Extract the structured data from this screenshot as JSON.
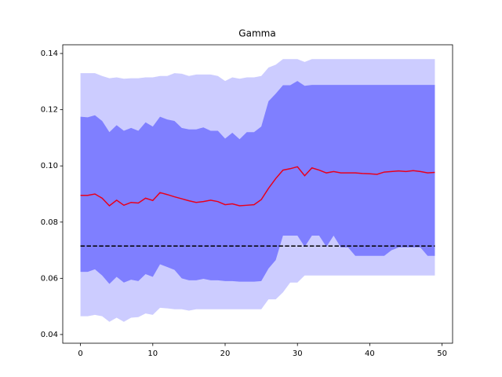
{
  "chart_data": {
    "type": "line",
    "title": "Gamma",
    "x": [
      0,
      1,
      2,
      3,
      4,
      5,
      6,
      7,
      8,
      9,
      10,
      11,
      12,
      13,
      14,
      15,
      16,
      17,
      18,
      19,
      20,
      21,
      22,
      23,
      24,
      25,
      26,
      27,
      28,
      29,
      30,
      31,
      32,
      33,
      34,
      35,
      36,
      37,
      38,
      39,
      40,
      41,
      42,
      43,
      44,
      45,
      46,
      47,
      48,
      49
    ],
    "series": [
      {
        "color": "#e8001c",
        "values": [
          0.0895,
          0.0895,
          0.09,
          0.0885,
          0.0858,
          0.0878,
          0.086,
          0.087,
          0.0868,
          0.0885,
          0.0877,
          0.0905,
          0.0898,
          0.089,
          0.0883,
          0.0876,
          0.087,
          0.0873,
          0.0878,
          0.0873,
          0.0862,
          0.0865,
          0.0858,
          0.086,
          0.0862,
          0.088,
          0.092,
          0.0955,
          0.0985,
          0.099,
          0.0997,
          0.0965,
          0.0993,
          0.0985,
          0.0975,
          0.098,
          0.0975,
          0.0975,
          0.0975,
          0.0973,
          0.0972,
          0.097,
          0.0978,
          0.098,
          0.0982,
          0.098,
          0.0983,
          0.098,
          0.0975,
          0.0977
        ]
      }
    ],
    "bands": [
      {
        "color": "#ccccff",
        "upper": [
          0.133,
          0.133,
          0.133,
          0.132,
          0.1312,
          0.1315,
          0.131,
          0.1312,
          0.1312,
          0.1315,
          0.1315,
          0.132,
          0.132,
          0.133,
          0.1328,
          0.132,
          0.1325,
          0.1325,
          0.1325,
          0.132,
          0.1302,
          0.1315,
          0.131,
          0.1315,
          0.1315,
          0.132,
          0.135,
          0.136,
          0.138,
          0.138,
          0.138,
          0.137,
          0.138,
          0.138,
          0.138,
          0.138,
          0.138,
          0.138,
          0.138,
          0.138,
          0.138,
          0.138,
          0.138,
          0.138,
          0.138,
          0.138,
          0.138,
          0.138,
          0.138,
          0.138
        ],
        "lower": [
          0.0465,
          0.0465,
          0.047,
          0.0465,
          0.0445,
          0.046,
          0.0445,
          0.046,
          0.0462,
          0.0475,
          0.047,
          0.0495,
          0.0493,
          0.049,
          0.049,
          0.0485,
          0.049,
          0.049,
          0.049,
          0.049,
          0.049,
          0.049,
          0.049,
          0.049,
          0.049,
          0.049,
          0.0525,
          0.0525,
          0.055,
          0.0585,
          0.0585,
          0.061,
          0.061,
          0.061,
          0.061,
          0.061,
          0.061,
          0.061,
          0.061,
          0.061,
          0.061,
          0.061,
          0.061,
          0.061,
          0.061,
          0.061,
          0.061,
          0.061,
          0.061,
          0.061
        ]
      },
      {
        "color": "#7f7fff",
        "upper": [
          0.1175,
          0.1173,
          0.118,
          0.116,
          0.112,
          0.1145,
          0.1125,
          0.1135,
          0.1125,
          0.1155,
          0.114,
          0.1175,
          0.1165,
          0.116,
          0.1135,
          0.113,
          0.113,
          0.1137,
          0.1125,
          0.1125,
          0.1097,
          0.1118,
          0.1095,
          0.112,
          0.112,
          0.114,
          0.123,
          0.1257,
          0.1287,
          0.1287,
          0.1302,
          0.1285,
          0.1288,
          0.1288,
          0.1288,
          0.1288,
          0.1288,
          0.1288,
          0.1288,
          0.1288,
          0.1288,
          0.1288,
          0.1288,
          0.1288,
          0.1288,
          0.1288,
          0.1288,
          0.1288,
          0.1288,
          0.1288
        ],
        "lower": [
          0.0623,
          0.0623,
          0.0632,
          0.061,
          0.058,
          0.0605,
          0.0585,
          0.0595,
          0.059,
          0.0615,
          0.0605,
          0.065,
          0.064,
          0.063,
          0.06,
          0.0593,
          0.0593,
          0.0598,
          0.0593,
          0.0593,
          0.059,
          0.059,
          0.0588,
          0.0588,
          0.0588,
          0.059,
          0.0635,
          0.0665,
          0.0752,
          0.0752,
          0.0752,
          0.0712,
          0.0752,
          0.0752,
          0.0712,
          0.0752,
          0.071,
          0.071,
          0.068,
          0.068,
          0.068,
          0.068,
          0.068,
          0.07,
          0.071,
          0.071,
          0.071,
          0.071,
          0.068,
          0.068
        ]
      }
    ],
    "hline": {
      "value": 0.0715,
      "color": "#000000",
      "style": "dashed"
    },
    "xlim": [
      -2.45,
      51.45
    ],
    "xticks": [
      0,
      10,
      20,
      30,
      40,
      50
    ],
    "ylim": [
      0.0369,
      0.1431
    ],
    "yticks": [
      0.04,
      0.06,
      0.08,
      {
        "value": 0.1,
        "label": "0.10"
      },
      0.12,
      0.14
    ],
    "grid": false
  }
}
